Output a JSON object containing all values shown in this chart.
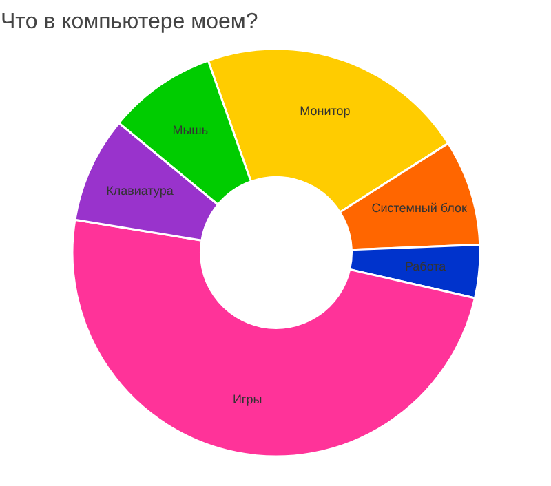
{
  "chart_data": {
    "type": "donut",
    "title": "Что в компьютере моем?",
    "categories": [
      "Монитор",
      "Системный блок",
      "Работа",
      "Игры",
      "Клавиатура",
      "Мышь"
    ],
    "values": [
      21.4,
      8.4,
      4.2,
      49,
      8.4,
      8.6
    ],
    "colors": [
      "#ffcc00",
      "#ff6600",
      "#0033cc",
      "#ff3399",
      "#9933cc",
      "#00cc00"
    ]
  }
}
